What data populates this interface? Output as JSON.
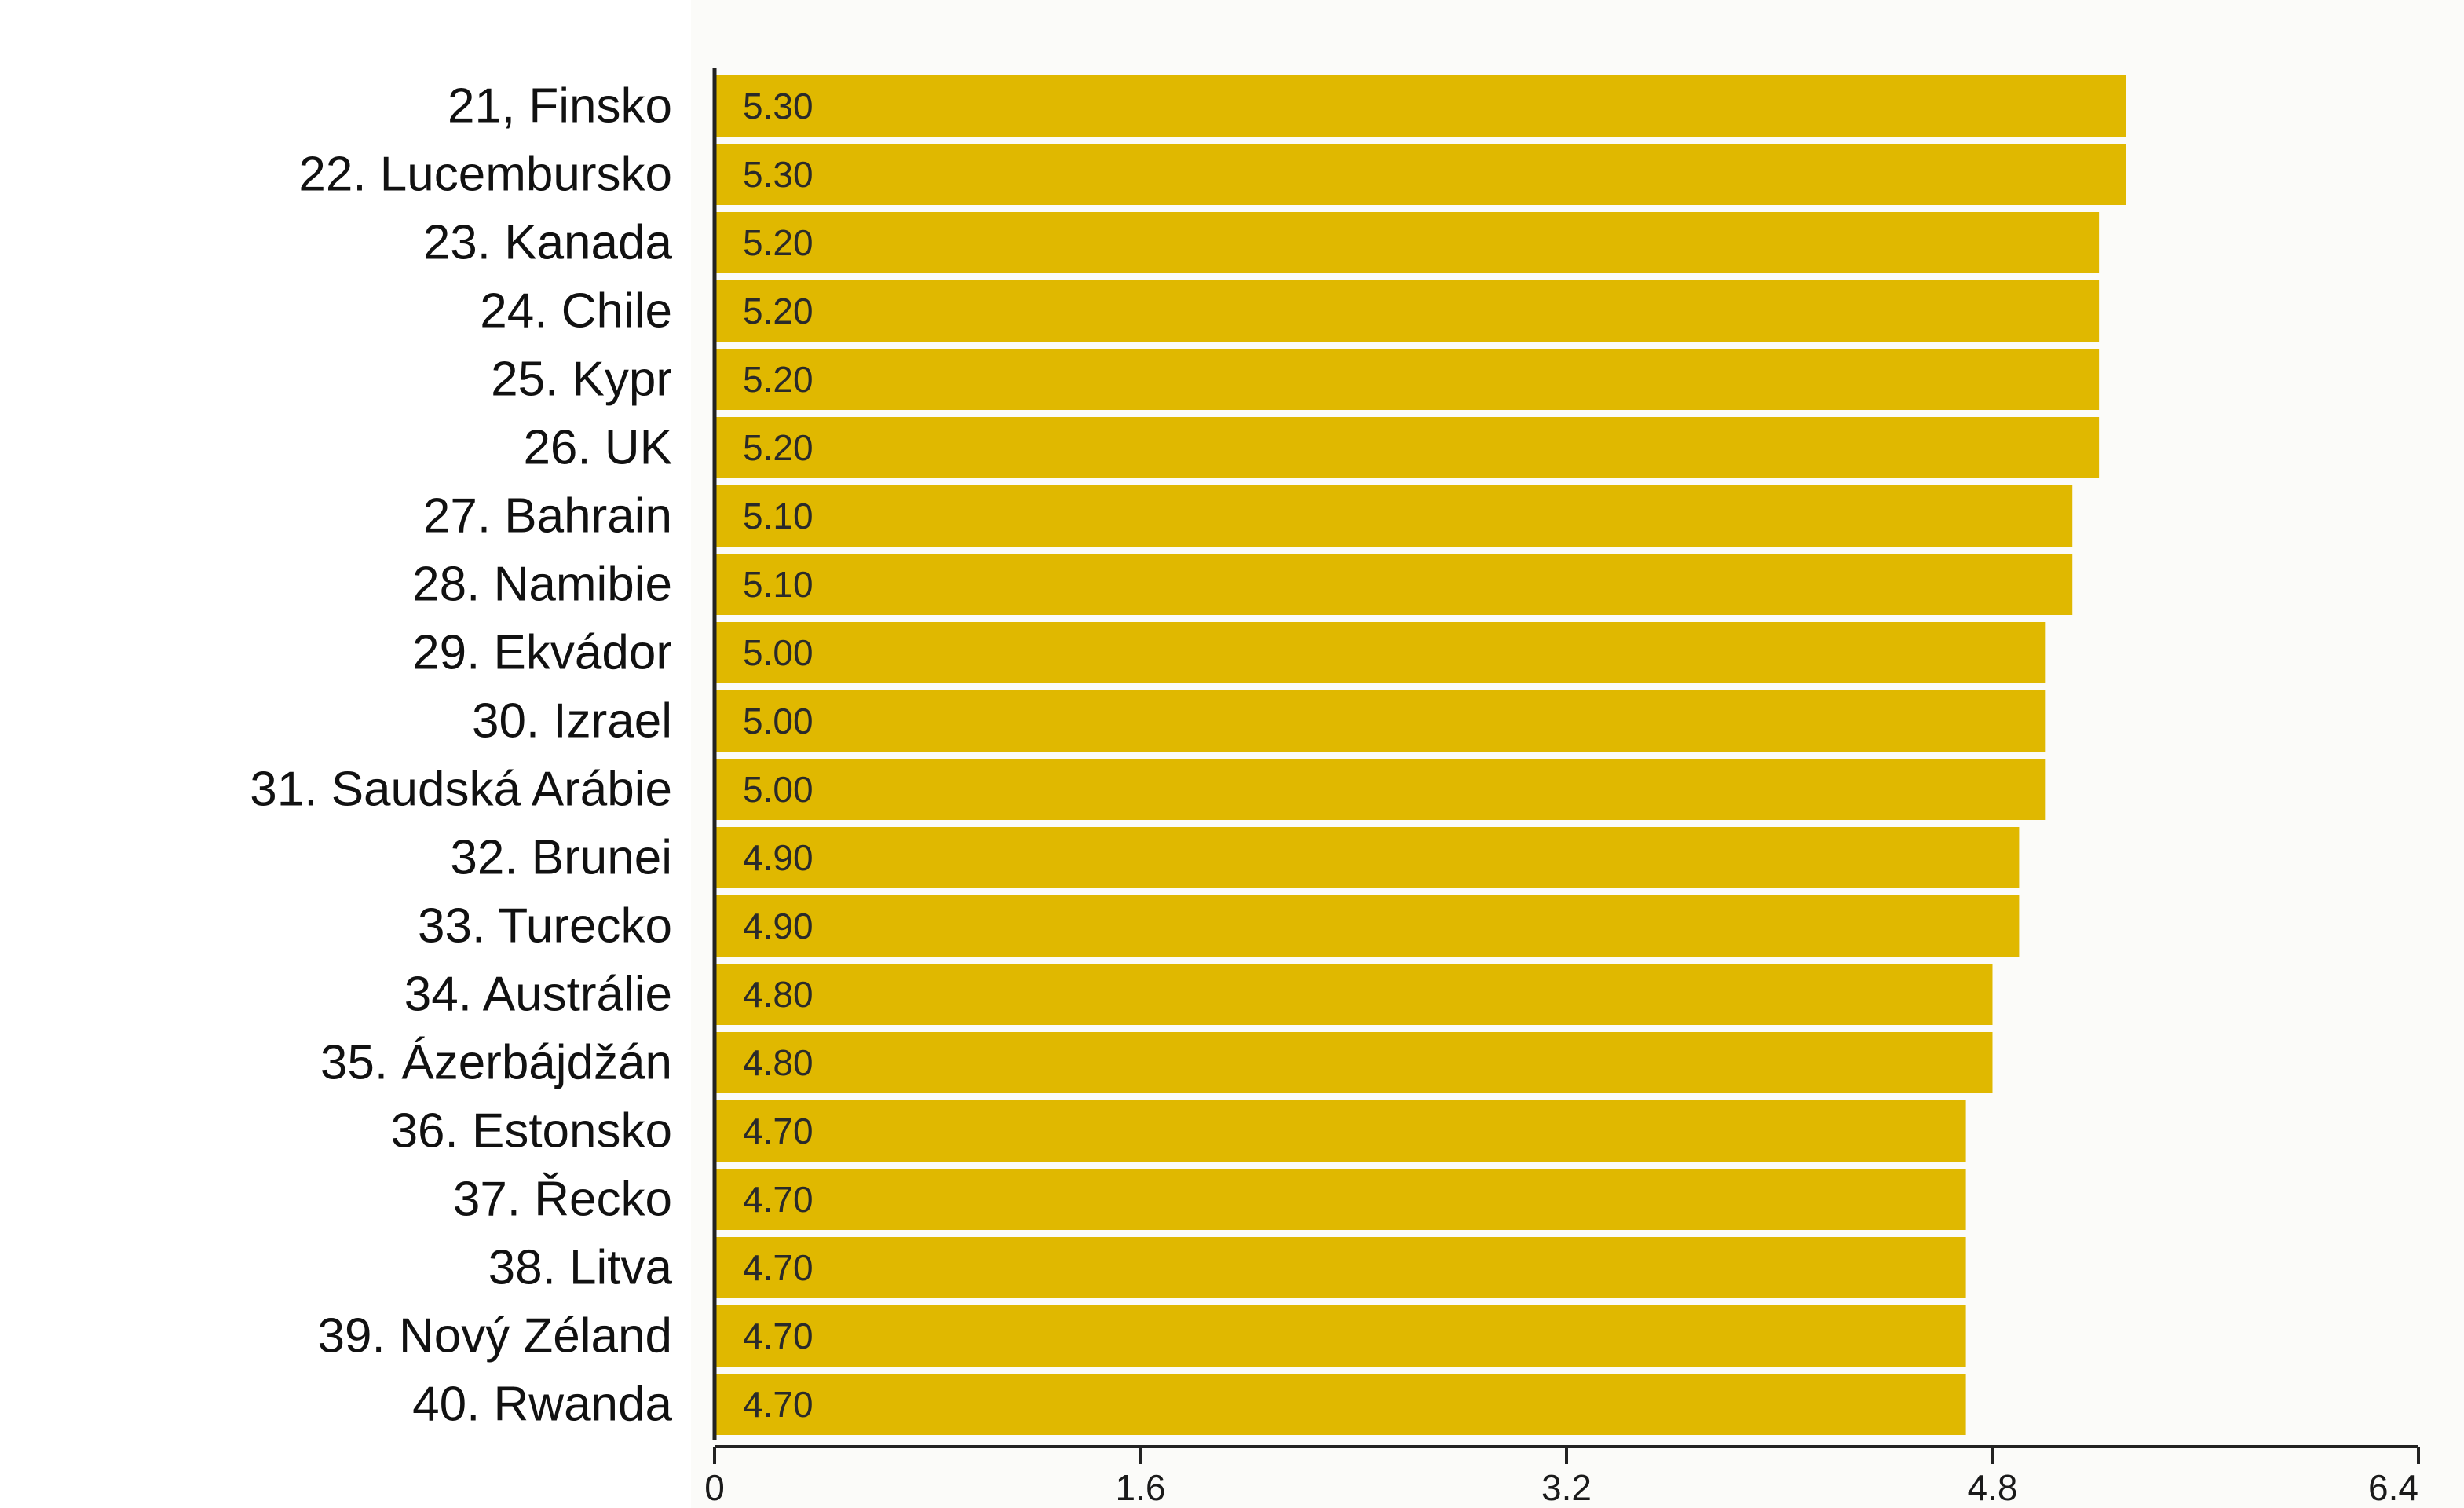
{
  "chart_data": {
    "type": "bar",
    "orientation": "horizontal",
    "categories": [
      "21, Finsko",
      "22. Lucembursko",
      "23. Kanada",
      "24. Chile",
      "25. Kypr",
      "26. UK",
      "27. Bahrain",
      "28. Namibie",
      "29. Ekvádor",
      "30. Izrael",
      "31. Saudská Arábie",
      "32. Brunei",
      "33. Turecko",
      "34. Austrálie",
      "35. Ázerbájdžán",
      "36. Estonsko",
      "37. Řecko",
      "38. Litva",
      "39. Nový Zéland",
      "40. Rwanda"
    ],
    "values": [
      5.3,
      5.3,
      5.2,
      5.2,
      5.2,
      5.2,
      5.1,
      5.1,
      5.0,
      5.0,
      5.0,
      4.9,
      4.9,
      4.8,
      4.8,
      4.7,
      4.7,
      4.7,
      4.7,
      4.7
    ],
    "value_labels": [
      "5.30",
      "5.30",
      "5.20",
      "5.20",
      "5.20",
      "5.20",
      "5.10",
      "5.10",
      "5.00",
      "5.00",
      "5.00",
      "4.90",
      "4.90",
      "4.80",
      "4.80",
      "4.70",
      "4.70",
      "4.70",
      "4.70",
      "4.70"
    ],
    "xlim": [
      0,
      6.4
    ],
    "x_ticks": [
      0,
      1.6,
      3.2,
      4.8,
      6.4
    ],
    "x_tick_labels": [
      "0",
      "1.6",
      "3.2",
      "4.8",
      "6.4"
    ],
    "title": "",
    "xlabel": "",
    "ylabel": "",
    "grid": false,
    "legend": "none",
    "bar_color": "#e0b800",
    "axis_color": "#222222"
  }
}
